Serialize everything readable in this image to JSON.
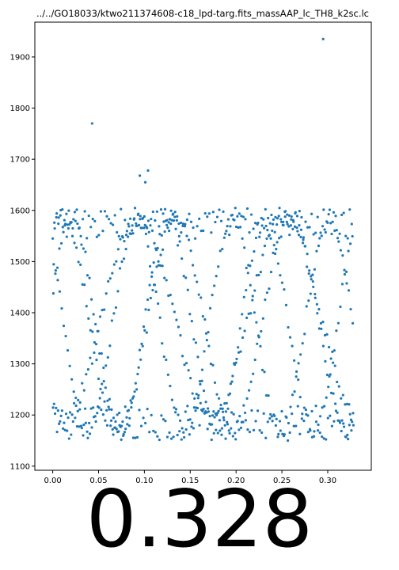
{
  "chart_data": {
    "type": "scatter",
    "title": "../../GO18033/ktwo211374608-c18_lpd-targ.fits_massAAP_lc_TH8_k2sc.lc",
    "xlabel": "",
    "ylabel": "",
    "xlim": [
      -0.0195,
      0.3475
    ],
    "ylim": [
      1092,
      1968
    ],
    "xticks": [
      "0.00",
      "0.05",
      "0.10",
      "0.15",
      "0.20",
      "0.25",
      "0.30"
    ],
    "yticks": [
      "1100",
      "1200",
      "1300",
      "1400",
      "1500",
      "1600",
      "1700",
      "1800",
      "1900"
    ],
    "point_color": "#1f77b4",
    "grid": false,
    "legend": "none",
    "x_range_points": [
      0.0,
      0.328
    ],
    "outliers": [
      {
        "x": 0.043,
        "y": 1770
      },
      {
        "x": 0.295,
        "y": 1935
      },
      {
        "x": 0.104,
        "y": 1678
      },
      {
        "x": 0.095,
        "y": 1668
      },
      {
        "x": 0.101,
        "y": 1655
      }
    ]
  },
  "footer": {
    "big_value": "0.328"
  }
}
